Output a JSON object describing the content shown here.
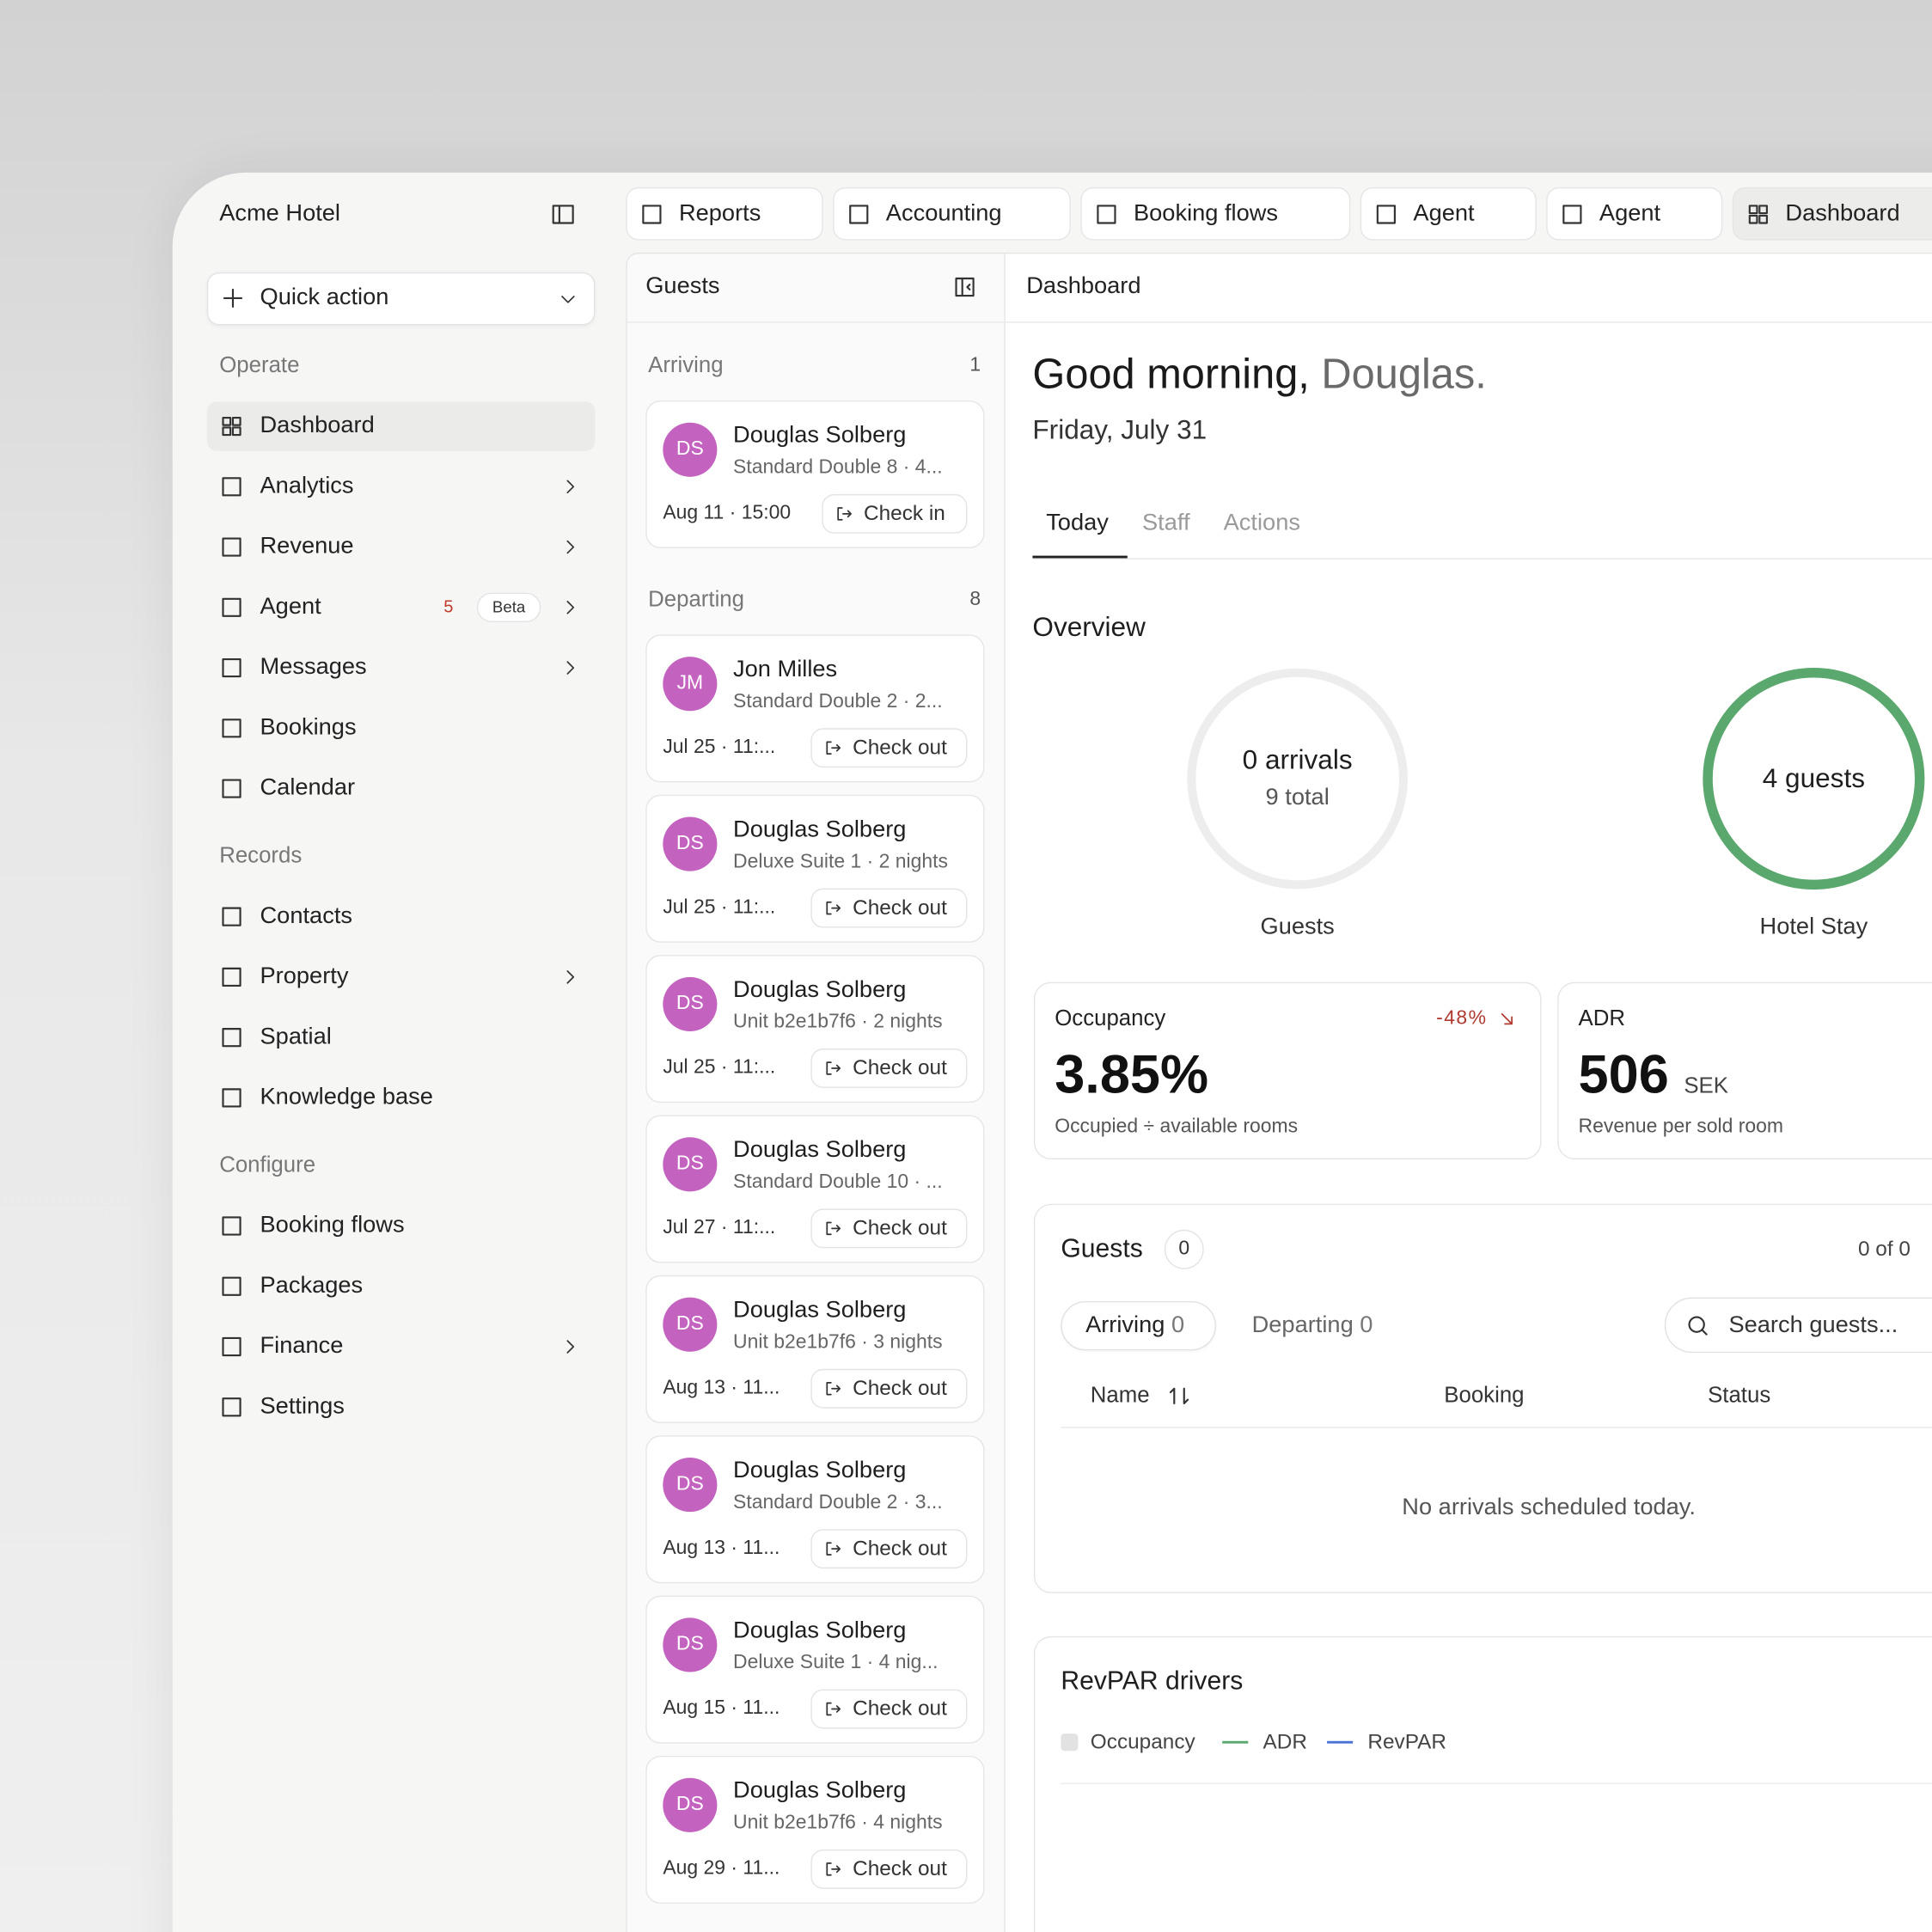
{
  "tabs": [
    "Reports",
    "Accounting",
    "Booking flows",
    "Agent",
    "Agent",
    "Dashboard"
  ],
  "sidebar": {
    "hotel": "Acme Hotel",
    "quick_action": "Quick action",
    "sections": [
      {
        "title": "Operate",
        "items": [
          {
            "label": "Dashboard",
            "active": true
          },
          {
            "label": "Analytics",
            "chevron": true
          },
          {
            "label": "Revenue",
            "chevron": true
          },
          {
            "label": "Agent",
            "badge": 5,
            "tag": "Beta",
            "chevron": true
          },
          {
            "label": "Messages",
            "chevron": true
          },
          {
            "label": "Bookings"
          },
          {
            "label": "Calendar"
          }
        ]
      },
      {
        "title": "Records",
        "items": [
          {
            "label": "Contacts"
          },
          {
            "label": "Property",
            "chevron": true
          },
          {
            "label": "Spatial"
          },
          {
            "label": "Knowledge base"
          }
        ]
      },
      {
        "title": "Configure",
        "items": [
          {
            "label": "Booking flows"
          },
          {
            "label": "Packages"
          },
          {
            "label": "Finance",
            "chevron": true
          },
          {
            "label": "Settings"
          }
        ]
      }
    ]
  },
  "guests": {
    "title": "Guests",
    "groups": [
      {
        "label": "Arriving",
        "count": 1,
        "cards": [
          {
            "initials": "DS",
            "name": "Douglas Solberg",
            "room": "Standard Double 8 · 4...",
            "time": "Aug 11 · 15:00",
            "action": "Check in"
          }
        ]
      },
      {
        "label": "Departing",
        "count": 8,
        "cards": [
          {
            "initials": "JM",
            "name": "Jon Milles",
            "room": "Standard Double 2 · 2...",
            "time": "Jul 25 · 11:...",
            "action": "Check out"
          },
          {
            "initials": "DS",
            "name": "Douglas Solberg",
            "room": "Deluxe Suite 1 · 2 nights",
            "time": "Jul 25 · 11:...",
            "action": "Check out"
          },
          {
            "initials": "DS",
            "name": "Douglas Solberg",
            "room": "Unit b2e1b7f6 · 2 nights",
            "time": "Jul 25 · 11:...",
            "action": "Check out"
          },
          {
            "initials": "DS",
            "name": "Douglas Solberg",
            "room": "Standard Double 10 · ...",
            "time": "Jul 27 · 11:...",
            "action": "Check out"
          },
          {
            "initials": "DS",
            "name": "Douglas Solberg",
            "room": "Unit b2e1b7f6 · 3 nights",
            "time": "Aug 13 · 11...",
            "action": "Check out"
          },
          {
            "initials": "DS",
            "name": "Douglas Solberg",
            "room": "Standard Double 2 · 3...",
            "time": "Aug 13 · 11...",
            "action": "Check out"
          },
          {
            "initials": "DS",
            "name": "Douglas Solberg",
            "room": "Deluxe Suite 1 · 4 nig...",
            "time": "Aug 15 · 11...",
            "action": "Check out"
          },
          {
            "initials": "DS",
            "name": "Douglas Solberg",
            "room": "Unit b2e1b7f6 · 4 nights",
            "time": "Aug 29 · 11...",
            "action": "Check out"
          }
        ]
      }
    ]
  },
  "dashboard": {
    "header": "Dashboard",
    "greeting": "Good morning,",
    "name": "Douglas.",
    "date": "Friday, July 31",
    "tabs": [
      "Today",
      "Staff",
      "Actions"
    ],
    "overview": "Overview",
    "rings": [
      {
        "main": "0 arrivals",
        "sub": "9 total",
        "label": "Guests"
      },
      {
        "main": "4 guests",
        "label": "Hotel Stay"
      }
    ],
    "kpis": [
      {
        "title": "Occupancy",
        "change": "-48%",
        "value": "3.85%",
        "note": "Occupied ÷ available rooms"
      },
      {
        "title": "ADR",
        "value": "506",
        "unit": "SEK",
        "note": "Revenue per sold room"
      }
    ],
    "guests_table": {
      "title": "Guests",
      "count": 0,
      "paging": "0 of 0",
      "filters": [
        {
          "label": "Arriving",
          "count": 0
        },
        {
          "label": "Departing",
          "count": 0
        }
      ],
      "search": "Search guests...",
      "columns": [
        "Name",
        "Booking",
        "Status"
      ],
      "empty": "No arrivals scheduled today."
    },
    "revpar": {
      "title": "RevPAR drivers",
      "legend": [
        {
          "name": "Occupancy",
          "color": "#e2e2e2"
        },
        {
          "name": "ADR",
          "color": "#5aa86e"
        },
        {
          "name": "RevPAR",
          "color": "#4a72d8"
        }
      ]
    }
  }
}
